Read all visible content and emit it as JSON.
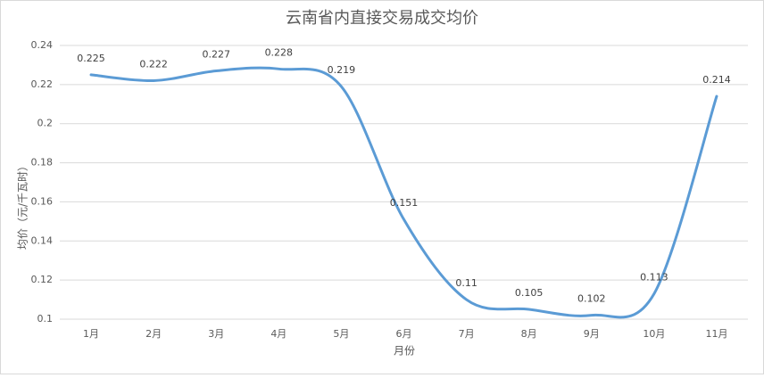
{
  "chart_data": {
    "type": "line",
    "title": "云南省内直接交易成交均价",
    "x_label": "月份",
    "y_label": "均价（元/千瓦时）",
    "categories": [
      "1月",
      "2月",
      "3月",
      "4月",
      "5月",
      "6月",
      "7月",
      "8月",
      "9月",
      "10月",
      "11月"
    ],
    "values": [
      0.225,
      0.222,
      0.227,
      0.228,
      0.219,
      0.151,
      0.11,
      0.105,
      0.102,
      0.113,
      0.214
    ],
    "color": "#5b9bd5",
    "smooth": true,
    "ylim": [
      0.1,
      0.24
    ],
    "yticks": [
      0.1,
      0.12,
      0.14,
      0.16,
      0.18,
      0.2,
      0.22,
      0.24
    ],
    "grid": true
  }
}
